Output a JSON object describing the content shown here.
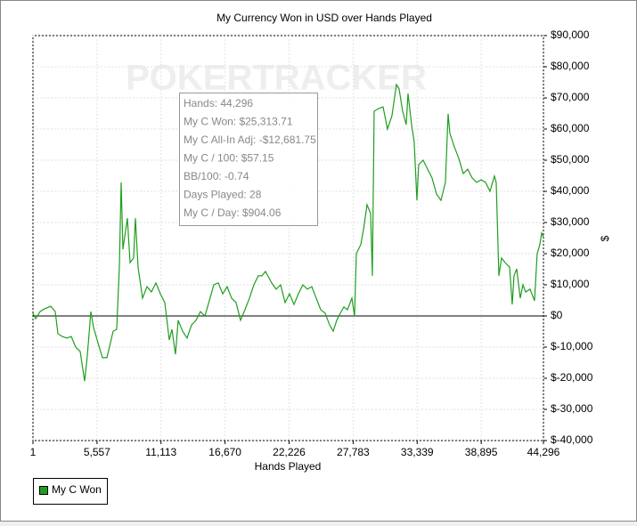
{
  "chart_data": {
    "type": "line",
    "title": "My Currency Won in USD over Hands Played",
    "x_label": "Hands Played",
    "y_label": "$",
    "watermark": "POKERTRACKER",
    "tooltip": [
      "Hands: 44,296",
      "My C Won: $25,313.71",
      "My C All-In Adj: -$12,681.75",
      "My C / 100: $57.15",
      "BB/100: -0.74",
      "Days Played: 28",
      "My C / Day: $904.06"
    ],
    "xlim": [
      1,
      44296
    ],
    "xticks": [
      1,
      {
        "value": 5557,
        "label": "5,557"
      },
      {
        "value": 11113,
        "label": "11,113"
      },
      {
        "value": 16670,
        "label": "16,670"
      },
      {
        "value": 22226,
        "label": "22,226"
      },
      {
        "value": 27783,
        "label": "27,783"
      },
      {
        "value": 33339,
        "label": "33,339"
      },
      {
        "value": 38895,
        "label": "38,895"
      },
      {
        "value": 44296,
        "label": "44,296"
      }
    ],
    "ylim": [
      -40000,
      90000
    ],
    "yticks": [
      {
        "value": -40000,
        "label": "$-40,000"
      },
      {
        "value": -30000,
        "label": "$-30,000"
      },
      {
        "value": -20000,
        "label": "$-20,000"
      },
      {
        "value": -10000,
        "label": "$-10,000"
      },
      {
        "value": 0,
        "label": "$0"
      },
      {
        "value": 10000,
        "label": "$10,000"
      },
      {
        "value": 20000,
        "label": "$20,000"
      },
      {
        "value": 30000,
        "label": "$30,000"
      },
      {
        "value": 40000,
        "label": "$40,000"
      },
      {
        "value": 50000,
        "label": "$50,000"
      },
      {
        "value": 60000,
        "label": "$60,000"
      },
      {
        "value": 70000,
        "label": "$70,000"
      },
      {
        "value": 80000,
        "label": "$80,000"
      },
      {
        "value": 90000,
        "label": "$90,000"
      }
    ],
    "grid": true,
    "series": [
      {
        "name": "My C Won",
        "color": "#1f9e1f",
        "x": [
          1,
          232,
          618,
          1005,
          1546,
          1933,
          2164,
          2551,
          2937,
          3324,
          3710,
          4097,
          4483,
          4715,
          5025,
          5256,
          5643,
          6029,
          6416,
          6725,
          6957,
          7266,
          7498,
          7653,
          7807,
          8194,
          8426,
          8735,
          8890,
          9121,
          9508,
          9894,
          10281,
          10667,
          11054,
          11440,
          11827,
          12059,
          12368,
          12600,
          12986,
          13373,
          13759,
          14146,
          14532,
          14919,
          15305,
          15692,
          16078,
          16465,
          16851,
          17238,
          17624,
          18011,
          18397,
          18784,
          19170,
          19557,
          19866,
          20175,
          20716,
          21103,
          21489,
          21876,
          22262,
          22649,
          23035,
          23422,
          23808,
          24195,
          24581,
          24968,
          25354,
          25741,
          26050,
          26359,
          26669,
          26978,
          27287,
          27673,
          27905,
          28060,
          28446,
          28678,
          28988,
          29297,
          29451,
          29606,
          29992,
          30379,
          30765,
          31152,
          31538,
          31770,
          32080,
          32389,
          32543,
          32853,
          33084,
          33316,
          33471,
          33857,
          34244,
          34630,
          35017,
          35403,
          35790,
          36022,
          36176,
          36563,
          36949,
          37336,
          37722,
          38109,
          38495,
          38882,
          39268,
          39655,
          40041,
          40196,
          40428,
          40660,
          40969,
          41356,
          41587,
          41742,
          41974,
          42283,
          42515,
          42747,
          43133,
          43520,
          43752,
          43984,
          44138,
          44296
        ],
        "values": [
          900,
          -900,
          1400,
          2300,
          3100,
          1400,
          -5700,
          -6600,
          -7100,
          -6600,
          -10000,
          -11400,
          -20900,
          -12900,
          1400,
          -3700,
          -8600,
          -13400,
          -13400,
          -8600,
          -4900,
          -4300,
          15700,
          42900,
          21400,
          31400,
          17100,
          18600,
          31400,
          15700,
          5700,
          9400,
          7700,
          10600,
          7100,
          4300,
          -7700,
          -4300,
          -12300,
          -1400,
          -4900,
          -7100,
          -2900,
          -1400,
          1400,
          0,
          4900,
          10000,
          10600,
          7100,
          9400,
          5700,
          4300,
          -1400,
          2000,
          5700,
          10000,
          12900,
          12900,
          14300,
          10600,
          8600,
          10000,
          4300,
          7100,
          3700,
          7100,
          10000,
          8600,
          9400,
          5700,
          2000,
          900,
          -2900,
          -4900,
          -1400,
          900,
          2900,
          2000,
          5700,
          0,
          20000,
          22900,
          27700,
          35700,
          32900,
          12900,
          65700,
          66600,
          67100,
          60000,
          64300,
          74300,
          72900,
          65700,
          61400,
          71400,
          61400,
          55700,
          37100,
          48600,
          50000,
          47100,
          44300,
          39100,
          37100,
          42900,
          64900,
          58600,
          54300,
          50600,
          45700,
          47100,
          44300,
          42900,
          43700,
          42900,
          40000,
          44900,
          42900,
          12900,
          18600,
          17100,
          15700,
          3700,
          12900,
          15100,
          5700,
          10000,
          7700,
          8600,
          4900,
          20000,
          22900,
          26600,
          25313.71
        ]
      }
    ]
  }
}
